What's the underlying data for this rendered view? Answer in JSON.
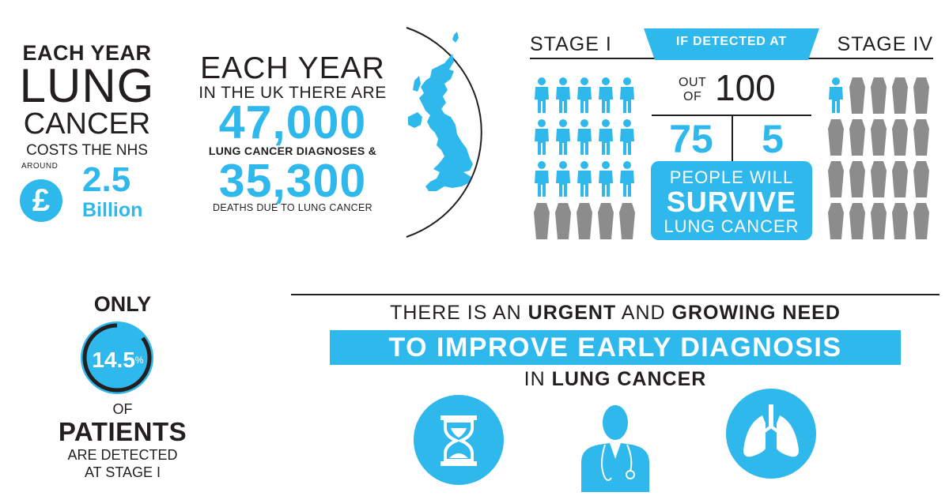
{
  "costs": {
    "line1": "EACH YEAR",
    "line2": "LUNG",
    "line3": "CANCER",
    "line4": "COSTS THE NHS",
    "around": "AROUND",
    "currency_symbol": "£",
    "value": "2.5",
    "unit": "Billion"
  },
  "uk": {
    "line1": "EACH YEAR",
    "line2": "IN THE UK THERE ARE",
    "diagnoses_number": "47,000",
    "diagnoses_label": "LUNG CANCER DIAGNOSES &",
    "deaths_number": "35,300",
    "deaths_label": "DEATHS DUE TO LUNG CANCER",
    "map_icon": "uk-map-icon"
  },
  "survival": {
    "stage_left": "STAGE I",
    "banner": "IF DETECTED AT",
    "stage_right": "STAGE IV",
    "out_of_line1": "OUT",
    "out_of_line2": "OF",
    "out_of_value": "100",
    "stage1_survivors": "75",
    "stage4_survivors": "5",
    "box_line1": "PEOPLE WILL",
    "box_line2": "SURVIVE",
    "box_line3": "LUNG CANCER",
    "stage1_survive_count": 15,
    "stage1_total": 20,
    "stage4_survive_count": 1,
    "stage4_total": 20,
    "person_icon": "person-icon",
    "coffin_icon": "coffin-icon",
    "colors": {
      "survive": "#2eb8ec",
      "not_survive": "#8c8c8c"
    }
  },
  "detection": {
    "only": "ONLY",
    "percent_value": "14.5",
    "percent_sign": "%",
    "percent_fraction": 0.145,
    "of": "OF",
    "patients": "PATIENTS",
    "line3": "ARE DETECTED",
    "line4": "AT STAGE I"
  },
  "need": {
    "line1_a": "THERE IS AN ",
    "line1_b": "URGENT",
    "line1_c": " AND ",
    "line1_d": "GROWING NEED",
    "banner": "TO IMPROVE EARLY DIAGNOSIS",
    "line3_a": "IN ",
    "line3_b": "LUNG CANCER",
    "icons": [
      "hourglass-icon",
      "doctor-icon",
      "lungs-icon"
    ]
  },
  "colors": {
    "accent": "#2eb8ec",
    "text": "#231f20",
    "grey": "#8c8c8c"
  }
}
